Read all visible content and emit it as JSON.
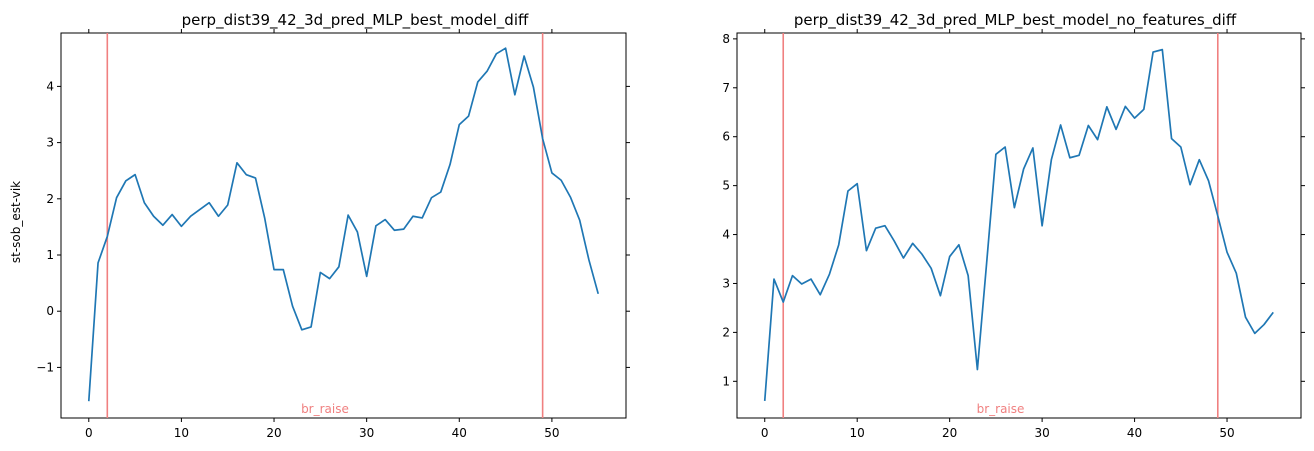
{
  "chart_data": [
    {
      "type": "line",
      "title": "perp_dist39_42_3d_pred_MLP_best_model_diff",
      "xlabel": "",
      "ylabel": "st-sob_est-vik",
      "xlim": [
        -3,
        58
      ],
      "ylim": [
        -1.9,
        4.95
      ],
      "xticks": [
        0,
        10,
        20,
        30,
        40,
        50
      ],
      "yticks": [
        -1,
        0,
        1,
        2,
        3,
        4
      ],
      "series": [
        {
          "color": "#1f77b4",
          "x": [
            0,
            1,
            2,
            3,
            4,
            5,
            6,
            7,
            8,
            9,
            10,
            11,
            12,
            13,
            14,
            15,
            16,
            17,
            18,
            19,
            20,
            21,
            22,
            23,
            24,
            25,
            26,
            27,
            28,
            29,
            30,
            31,
            32,
            33,
            34,
            35,
            36,
            37,
            38,
            39,
            40,
            41,
            42,
            43,
            44,
            45,
            46,
            47,
            48,
            49,
            50,
            51,
            52,
            53,
            54,
            55
          ],
          "values": [
            -1.6,
            0.86,
            1.33,
            2.02,
            2.32,
            2.43,
            1.93,
            1.69,
            1.53,
            1.72,
            1.51,
            1.69,
            1.81,
            1.93,
            1.69,
            1.89,
            2.64,
            2.43,
            2.37,
            1.65,
            0.74,
            0.74,
            0.09,
            -0.33,
            -0.28,
            0.69,
            0.58,
            0.79,
            1.71,
            1.41,
            0.62,
            1.52,
            1.63,
            1.44,
            1.46,
            1.69,
            1.66,
            2.02,
            2.12,
            2.61,
            3.32,
            3.47,
            4.08,
            4.27,
            4.58,
            4.68,
            3.85,
            4.54,
            3.99,
            3.07,
            2.46,
            2.33,
            2.03,
            1.62,
            0.91,
            0.31
          ]
        }
      ],
      "vlines": [
        {
          "x": 2,
          "color": "#f08080"
        },
        {
          "x": 49,
          "color": "#f08080"
        }
      ],
      "annotations": [
        {
          "text": "br_raise",
          "x": 25.5,
          "color": "#f08080"
        }
      ]
    },
    {
      "type": "line",
      "title": "perp_dist39_42_3d_pred_MLP_best_model_no_features_diff",
      "xlabel": "",
      "ylabel": "",
      "xlim": [
        -3,
        58
      ],
      "ylim": [
        0.25,
        8.12
      ],
      "xticks": [
        0,
        10,
        20,
        30,
        40,
        50
      ],
      "yticks": [
        1,
        2,
        3,
        4,
        5,
        6,
        7,
        8
      ],
      "series": [
        {
          "color": "#1f77b4",
          "x": [
            0,
            1,
            2,
            3,
            4,
            5,
            6,
            7,
            8,
            9,
            10,
            11,
            12,
            13,
            14,
            15,
            16,
            17,
            18,
            19,
            20,
            21,
            22,
            23,
            24,
            25,
            26,
            27,
            28,
            29,
            30,
            31,
            32,
            33,
            34,
            35,
            36,
            37,
            38,
            39,
            40,
            41,
            42,
            43,
            44,
            45,
            46,
            47,
            48,
            49,
            50,
            51,
            52,
            53,
            54,
            55
          ],
          "values": [
            0.6,
            3.09,
            2.62,
            3.16,
            2.99,
            3.09,
            2.77,
            3.19,
            3.79,
            4.89,
            5.04,
            3.67,
            4.13,
            4.18,
            3.87,
            3.52,
            3.82,
            3.6,
            3.31,
            2.75,
            3.55,
            3.79,
            3.16,
            1.24,
            3.42,
            5.64,
            5.79,
            4.55,
            5.34,
            5.77,
            4.18,
            5.53,
            6.24,
            5.57,
            5.62,
            6.23,
            5.94,
            6.61,
            6.15,
            6.62,
            6.38,
            6.56,
            7.73,
            7.78,
            5.96,
            5.79,
            5.02,
            5.53,
            5.1,
            4.38,
            3.64,
            3.21,
            2.31,
            1.98,
            2.16,
            2.41
          ]
        }
      ],
      "vlines": [
        {
          "x": 2,
          "color": "#f08080"
        },
        {
          "x": 49,
          "color": "#f08080"
        }
      ],
      "annotations": [
        {
          "text": "br_raise",
          "x": 25.5,
          "color": "#f08080"
        }
      ]
    }
  ]
}
